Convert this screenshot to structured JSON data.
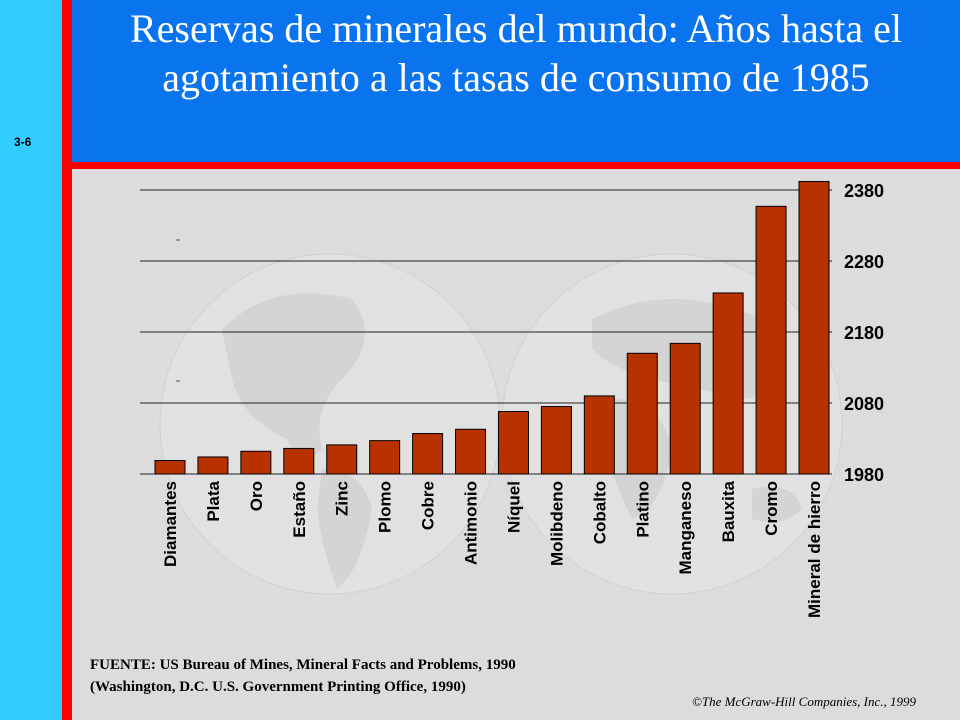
{
  "slide": {
    "number": "3-6",
    "title": "Reservas de minerales del mundo: Años hasta el agotamiento a las tasas de consumo de 1985",
    "source": "FUENTE: US Bureau of Mines, Mineral Facts and Problems, 1990\n(Washington, D.C. U.S. Government Printing Office, 1990)",
    "copyright": "©The McGraw-Hill Companies, Inc., 1999"
  },
  "colors": {
    "bar": "#b83200",
    "title_bg": "#0a73ee",
    "accent": "#ff0000",
    "left_bar": "#33ccff"
  },
  "chart_data": {
    "type": "bar",
    "title": "",
    "xlabel": "",
    "ylabel": "",
    "ylim": [
      1980,
      2380
    ],
    "yticks": [
      1980,
      2080,
      2180,
      2280,
      2380
    ],
    "grid": true,
    "y_axis_side": "right",
    "categories": [
      "Diamantes",
      "Plata",
      "Oro",
      "Estaño",
      "Zinc",
      "Plomo",
      "Cobre",
      "Antimonio",
      "Níquel",
      "Molibdeno",
      "Cobalto",
      "Platino",
      "Manganeso",
      "Bauxita",
      "Cromo",
      "Mineral de hierro"
    ],
    "values": [
      1999,
      2004,
      2012,
      2016,
      2021,
      2027,
      2037,
      2043,
      2068,
      2075,
      2090,
      2150,
      2164,
      2235,
      2357,
      2392
    ]
  }
}
